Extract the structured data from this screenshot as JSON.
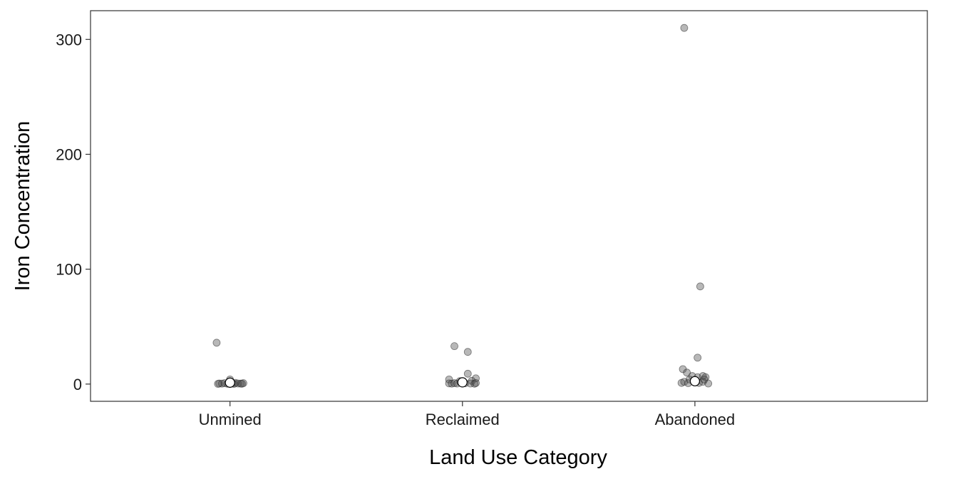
{
  "chart_data": {
    "type": "scatter",
    "title": "",
    "xlabel": "Land Use Category",
    "ylabel": "Iron Concentration",
    "categories": [
      "Unmined",
      "Reclaimed",
      "Abandoned"
    ],
    "ylim": [
      -15,
      325
    ],
    "yticks": [
      0,
      100,
      200,
      300
    ],
    "grid": false,
    "legend": "none",
    "point_color": "#4d4d4d",
    "mean_color": "#ffffff",
    "series": [
      {
        "category": "Unmined",
        "points": [
          {
            "offset": -0.05,
            "y": 36
          },
          {
            "offset": 0.0,
            "y": 4
          },
          {
            "offset": -0.04,
            "y": 0.5
          },
          {
            "offset": -0.03,
            "y": 0.4
          },
          {
            "offset": -0.02,
            "y": 0.8
          },
          {
            "offset": -0.01,
            "y": 0.3
          },
          {
            "offset": 0.01,
            "y": 0.6
          },
          {
            "offset": 0.02,
            "y": 1.0
          },
          {
            "offset": 0.03,
            "y": 0.5
          },
          {
            "offset": 0.04,
            "y": 0.4
          },
          {
            "offset": 0.05,
            "y": 0.8
          },
          {
            "offset": -0.045,
            "y": 0.2
          },
          {
            "offset": 0.045,
            "y": 0.3
          },
          {
            "offset": 0.015,
            "y": 0.2
          }
        ],
        "mean": 1.2
      },
      {
        "category": "Reclaimed",
        "points": [
          {
            "offset": -0.03,
            "y": 33
          },
          {
            "offset": 0.02,
            "y": 28
          },
          {
            "offset": 0.02,
            "y": 9
          },
          {
            "offset": -0.05,
            "y": 4
          },
          {
            "offset": 0.05,
            "y": 5
          },
          {
            "offset": -0.01,
            "y": 2.5
          },
          {
            "offset": 0.035,
            "y": 2.8
          },
          {
            "offset": -0.05,
            "y": 0.6
          },
          {
            "offset": -0.04,
            "y": 0.4
          },
          {
            "offset": -0.03,
            "y": 0.8
          },
          {
            "offset": -0.02,
            "y": 0.5
          },
          {
            "offset": 0.01,
            "y": 0.7
          },
          {
            "offset": 0.03,
            "y": 0.5
          },
          {
            "offset": 0.045,
            "y": 0.3
          },
          {
            "offset": 0.05,
            "y": 0.9
          }
        ],
        "mean": 1.5
      },
      {
        "category": "Abandoned",
        "points": [
          {
            "offset": -0.04,
            "y": 310
          },
          {
            "offset": 0.02,
            "y": 85
          },
          {
            "offset": 0.01,
            "y": 23
          },
          {
            "offset": -0.045,
            "y": 13
          },
          {
            "offset": -0.03,
            "y": 10
          },
          {
            "offset": -0.01,
            "y": 7
          },
          {
            "offset": 0.01,
            "y": 6
          },
          {
            "offset": 0.03,
            "y": 7
          },
          {
            "offset": 0.04,
            "y": 6
          },
          {
            "offset": -0.05,
            "y": 1
          },
          {
            "offset": -0.04,
            "y": 2
          },
          {
            "offset": -0.02,
            "y": 4
          },
          {
            "offset": 0.0,
            "y": 3
          },
          {
            "offset": 0.015,
            "y": 1
          },
          {
            "offset": 0.03,
            "y": 2
          },
          {
            "offset": 0.05,
            "y": 0.5
          },
          {
            "offset": 0.035,
            "y": 4
          },
          {
            "offset": -0.025,
            "y": 0.8
          }
        ],
        "mean": 2.5
      }
    ]
  }
}
